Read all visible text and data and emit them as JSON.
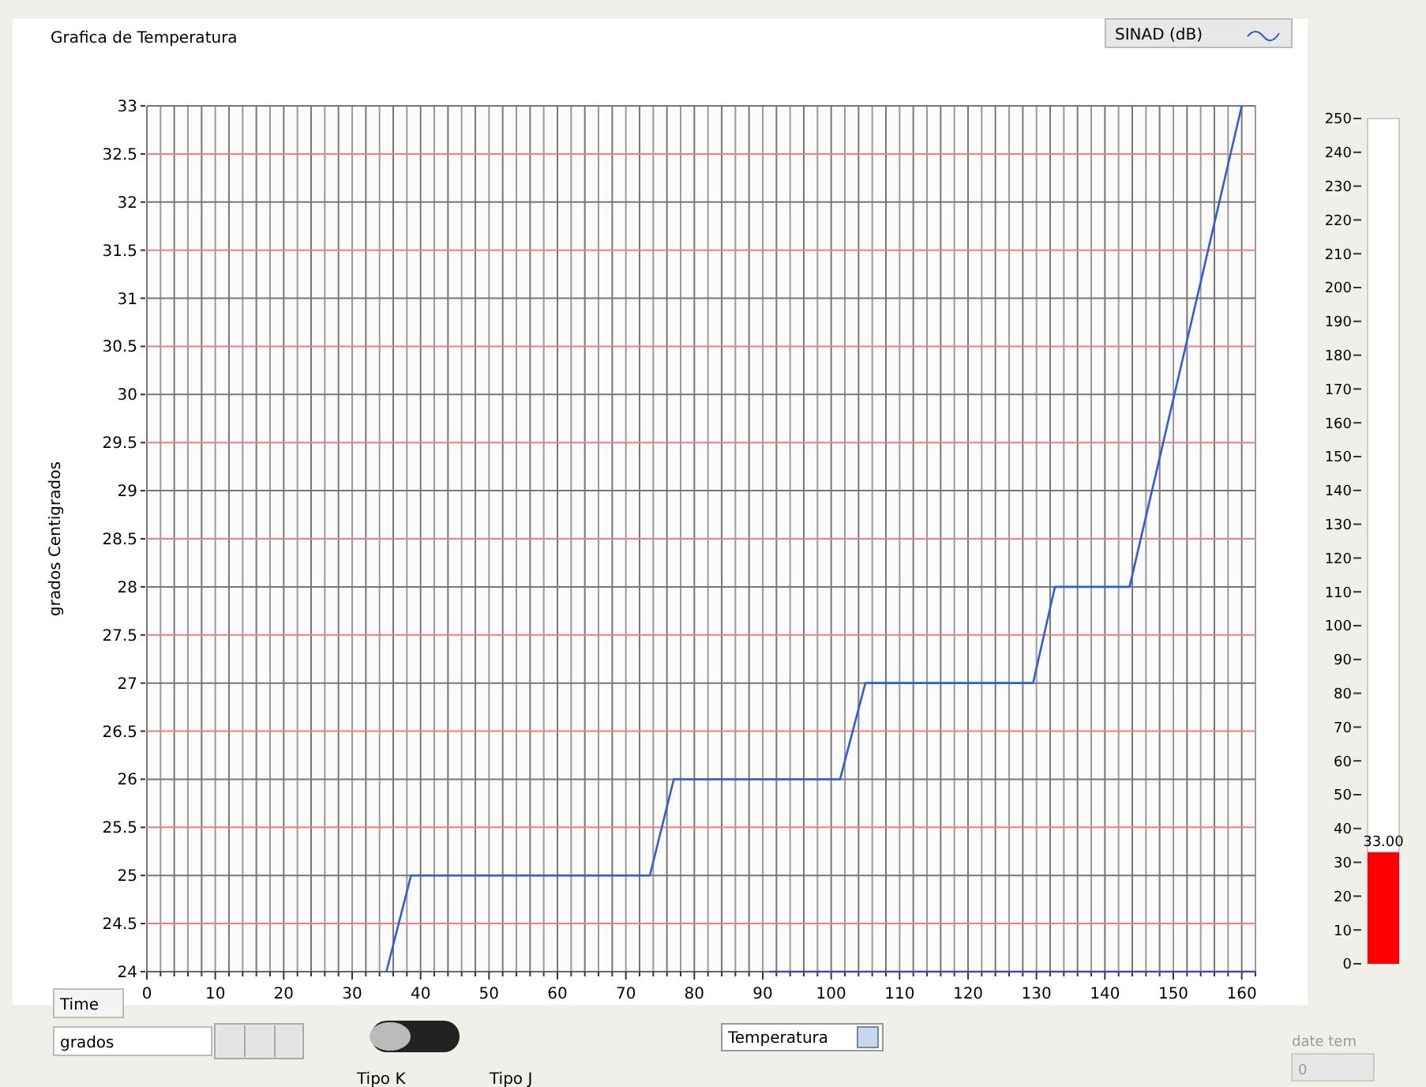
{
  "chart_data": [
    {
      "type": "line",
      "title": "Grafica de Temperatura",
      "ylabel": "grados Centigrados",
      "legend": "top right",
      "grid": true,
      "xlim": [
        0,
        162
      ],
      "ylim": [
        24,
        33
      ],
      "xticks": [
        0,
        {
          "value": 2,
          "label": null
        },
        {
          "value": 4,
          "label": null
        },
        {
          "value": 6,
          "label": null
        },
        {
          "value": 8,
          "label": null
        },
        10,
        {
          "value": 12,
          "label": null
        },
        {
          "value": 14,
          "label": null
        },
        {
          "value": 16,
          "label": null
        },
        {
          "value": 18,
          "label": null
        },
        20,
        {
          "value": 22,
          "label": null
        },
        {
          "value": 24,
          "label": null
        },
        {
          "value": 26,
          "label": null
        },
        {
          "value": 28,
          "label": null
        },
        30,
        {
          "value": 32,
          "label": null
        },
        {
          "value": 34,
          "label": null
        },
        {
          "value": 36,
          "label": null
        },
        {
          "value": 38,
          "label": null
        },
        40,
        {
          "value": 42,
          "label": null
        },
        {
          "value": 44,
          "label": null
        },
        {
          "value": 46,
          "label": null
        },
        {
          "value": 48,
          "label": null
        },
        50,
        {
          "value": 52,
          "label": null
        },
        {
          "value": 54,
          "label": null
        },
        {
          "value": 56,
          "label": null
        },
        {
          "value": 58,
          "label": null
        },
        60,
        {
          "value": 62,
          "label": null
        },
        {
          "value": 64,
          "label": null
        },
        {
          "value": 66,
          "label": null
        },
        {
          "value": 68,
          "label": null
        },
        70,
        {
          "value": 72,
          "label": null
        },
        {
          "value": 74,
          "label": null
        },
        {
          "value": 76,
          "label": null
        },
        {
          "value": 78,
          "label": null
        },
        80,
        {
          "value": 82,
          "label": null
        },
        {
          "value": 84,
          "label": null
        },
        {
          "value": 86,
          "label": null
        },
        {
          "value": 88,
          "label": null
        },
        90,
        {
          "value": 92,
          "label": null
        },
        {
          "value": 94,
          "label": null
        },
        {
          "value": 96,
          "label": null
        },
        {
          "value": 98,
          "label": null
        },
        100,
        {
          "value": 102,
          "label": null
        },
        {
          "value": 104,
          "label": null
        },
        {
          "value": 106,
          "label": null
        },
        {
          "value": 108,
          "label": null
        },
        110,
        {
          "value": 112,
          "label": null
        },
        {
          "value": 114,
          "label": null
        },
        {
          "value": 116,
          "label": null
        },
        {
          "value": 118,
          "label": null
        },
        120,
        {
          "value": 122,
          "label": null
        },
        {
          "value": 124,
          "label": null
        },
        {
          "value": 126,
          "label": null
        },
        {
          "value": 128,
          "label": null
        },
        130,
        {
          "value": 132,
          "label": null
        },
        {
          "value": 134,
          "label": null
        },
        {
          "value": 136,
          "label": null
        },
        {
          "value": 138,
          "label": null
        },
        140,
        {
          "value": 142,
          "label": null
        },
        {
          "value": 144,
          "label": null
        },
        {
          "value": 146,
          "label": null
        },
        {
          "value": 148,
          "label": null
        },
        150,
        {
          "value": 152,
          "label": null
        },
        {
          "value": 154,
          "label": null
        },
        {
          "value": 156,
          "label": null
        },
        {
          "value": 158,
          "label": null
        },
        160,
        {
          "value": 162,
          "label": null
        }
      ],
      "yticks": [
        24,
        24.5,
        25,
        25.5,
        26,
        26.5,
        27,
        27.5,
        28,
        28.5,
        29,
        29.5,
        30,
        30.5,
        31,
        31.5,
        32,
        32.5,
        33
      ],
      "series": [
        {
          "name": "SINAD (dB)",
          "color": "#2f5fd0",
          "x": [
            35,
            38.6,
            73.5,
            77,
            101.3,
            105,
            129.5,
            132.7,
            143.6,
            160
          ],
          "values": [
            24,
            25,
            25,
            26,
            26,
            27,
            27,
            28,
            28,
            33
          ]
        },
        {
          "color": "#4a4aa8",
          "x": [
            91,
            162
          ],
          "values": [
            24,
            24
          ]
        }
      ],
      "annotations": [
        "Time",
        "grados",
        "Tipo K",
        "Tipo J",
        "Temperatura",
        "date tem",
        "0"
      ]
    },
    {
      "type": "bar",
      "categories": [
        null
      ],
      "values": [
        33
      ],
      "color": "#ff0000",
      "value_labels": [
        "33.00"
      ],
      "ylim": [
        0,
        250
      ],
      "yticks": [
        0,
        10,
        20,
        30,
        40,
        50,
        60,
        70,
        80,
        90,
        100,
        110,
        120,
        130,
        140,
        150,
        160,
        170,
        180,
        190,
        200,
        210,
        220,
        230,
        240,
        250
      ]
    }
  ]
}
